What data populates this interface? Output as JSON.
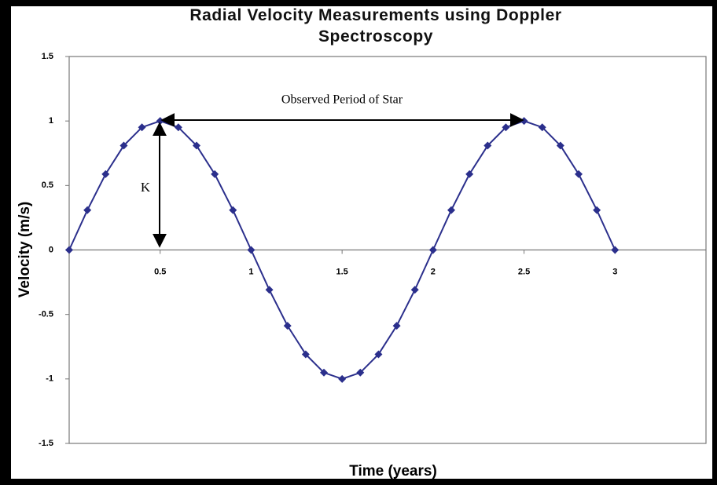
{
  "chart_data": {
    "type": "line",
    "title": "Radial Velocity Measurements using Doppler Spectroscopy",
    "x_label": "Time (years)",
    "y_label": "Velocity (m/s)",
    "annotations": [
      "Observed Period of Star",
      "K"
    ],
    "x": [
      0,
      0.1,
      0.2,
      0.3,
      0.4,
      0.5,
      0.6,
      0.7,
      0.8,
      0.9,
      1,
      1.1,
      1.2,
      1.3,
      1.4,
      1.5,
      1.6,
      1.7,
      1.8,
      1.9,
      2,
      2.1,
      2.2,
      2.3,
      2.4,
      2.5,
      2.6,
      2.7,
      2.8,
      2.9,
      3
    ],
    "series": [
      {
        "color": "#2b2f8c",
        "values": [
          0,
          0.309,
          0.588,
          0.809,
          0.951,
          1,
          0.951,
          0.809,
          0.588,
          0.309,
          0,
          -0.309,
          -0.588,
          -0.809,
          -0.951,
          -1,
          -0.951,
          -0.809,
          -0.588,
          -0.309,
          0,
          0.309,
          0.588,
          0.809,
          0.951,
          1,
          0.951,
          0.809,
          0.588,
          0.309,
          0
        ]
      }
    ],
    "xlim": [
      0,
      3.5
    ],
    "xticks": [
      0.5,
      1,
      1.5,
      2,
      2.5,
      3
    ],
    "ylim": [
      -1.5,
      1.5
    ],
    "yticks": [
      -1.5,
      -1,
      -0.5,
      0,
      0.5,
      1,
      1.5
    ],
    "grid": false
  }
}
